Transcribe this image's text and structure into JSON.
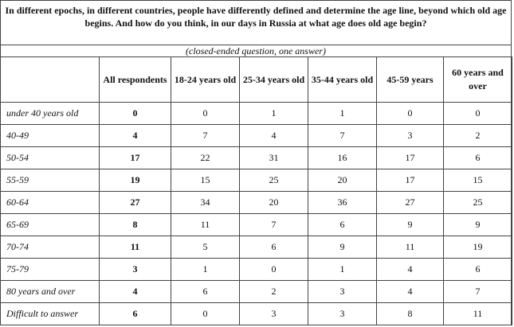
{
  "title": "In different epochs, in different countries, people have differently defined and determine the age line, beyond which old age begins. And how do you think, in our days in Russia at what age does old age begin?",
  "subtitle": "(closed-ended question, one answer)",
  "columns": [
    "",
    "All respondents",
    "18-24 years old",
    "25-34 years old",
    "35-44 years old",
    "45-59 years",
    "60 years and over"
  ],
  "rows": [
    {
      "label": "under 40 years old",
      "values": [
        "0",
        "0",
        "1",
        "1",
        "0",
        "0"
      ]
    },
    {
      "label": "40-49",
      "values": [
        "4",
        "7",
        "4",
        "7",
        "3",
        "2"
      ]
    },
    {
      "label": "50-54",
      "values": [
        "17",
        "22",
        "31",
        "16",
        "17",
        "6"
      ]
    },
    {
      "label": "55-59",
      "values": [
        "19",
        "15",
        "25",
        "20",
        "17",
        "15"
      ]
    },
    {
      "label": "60-64",
      "values": [
        "27",
        "34",
        "20",
        "36",
        "27",
        "25"
      ]
    },
    {
      "label": "65-69",
      "values": [
        "8",
        "11",
        "7",
        "6",
        "9",
        "9"
      ]
    },
    {
      "label": "70-74",
      "values": [
        "11",
        "5",
        "6",
        "9",
        "11",
        "19"
      ]
    },
    {
      "label": "75-79",
      "values": [
        "3",
        "1",
        "0",
        "1",
        "4",
        "6"
      ]
    },
    {
      "label": "80 years and over",
      "values": [
        "4",
        "6",
        "2",
        "3",
        "4",
        "7"
      ]
    },
    {
      "label": "Difficult to answer",
      "values": [
        "6",
        "0",
        "3",
        "3",
        "8",
        "11"
      ]
    }
  ]
}
